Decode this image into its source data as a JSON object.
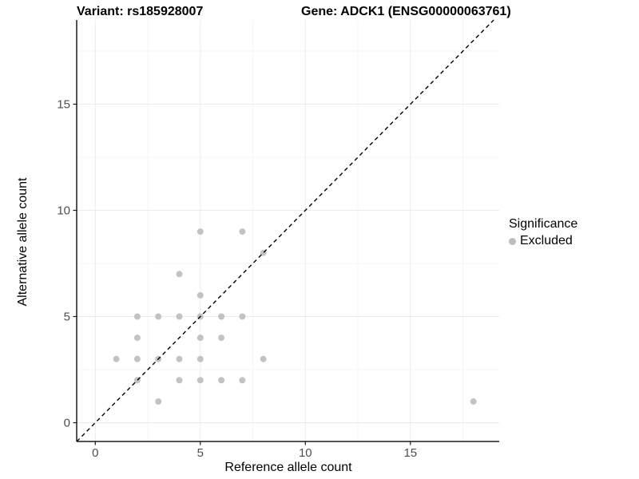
{
  "titles": {
    "left": "Variant: rs185928007",
    "right": "Gene: ADCK1 (ENSG00000063761)"
  },
  "axes": {
    "x_label": "Reference allele count",
    "y_label": "Alternative allele count",
    "x_tick_labels": [
      "0",
      "5",
      "10",
      "15"
    ],
    "y_tick_labels": [
      "0",
      "5",
      "10",
      "15"
    ]
  },
  "legend": {
    "title": "Significance",
    "items": [
      {
        "label": "Excluded",
        "marker_color": "#bdbdbd"
      }
    ]
  },
  "colors": {
    "point": "#bdbdbd",
    "grid_major": "#ebebeb",
    "grid_minor": "#f5f5f5",
    "axis_line": "#1a1a1a",
    "tick_label": "#4d4d4d",
    "reference_line": "#000000",
    "background": "#ffffff"
  },
  "chart_data": {
    "type": "scatter",
    "title": "Variant: rs185928007 — Gene: ADCK1 (ENSG00000063761)",
    "xlabel": "Reference allele count",
    "ylabel": "Alternative allele count",
    "xlim": [
      -0.9,
      19.1
    ],
    "ylim": [
      -0.9,
      19.0
    ],
    "x_ticks": [
      0,
      5,
      10,
      15
    ],
    "y_ticks": [
      0,
      5,
      10,
      15
    ],
    "minor_ticks": [
      2.5,
      7.5,
      12.5,
      17.5
    ],
    "grid": "major+minor",
    "legend_position": "right",
    "reference_line": {
      "equation": "y = x",
      "style": "dashed",
      "color": "#000000"
    },
    "series": [
      {
        "name": "Excluded",
        "color": "#bdbdbd",
        "points": [
          [
            1,
            3
          ],
          [
            2,
            2
          ],
          [
            2,
            3
          ],
          [
            2,
            4
          ],
          [
            2,
            5
          ],
          [
            3,
            1
          ],
          [
            3,
            3
          ],
          [
            3,
            5
          ],
          [
            4,
            2
          ],
          [
            4,
            3
          ],
          [
            4,
            5
          ],
          [
            4,
            7
          ],
          [
            5,
            2
          ],
          [
            5,
            3
          ],
          [
            5,
            4
          ],
          [
            5,
            5
          ],
          [
            5,
            6
          ],
          [
            5,
            9
          ],
          [
            6,
            2
          ],
          [
            6,
            4
          ],
          [
            6,
            5
          ],
          [
            7,
            2
          ],
          [
            7,
            5
          ],
          [
            7,
            9
          ],
          [
            8,
            3
          ],
          [
            8,
            8
          ],
          [
            18,
            1
          ]
        ]
      }
    ]
  }
}
